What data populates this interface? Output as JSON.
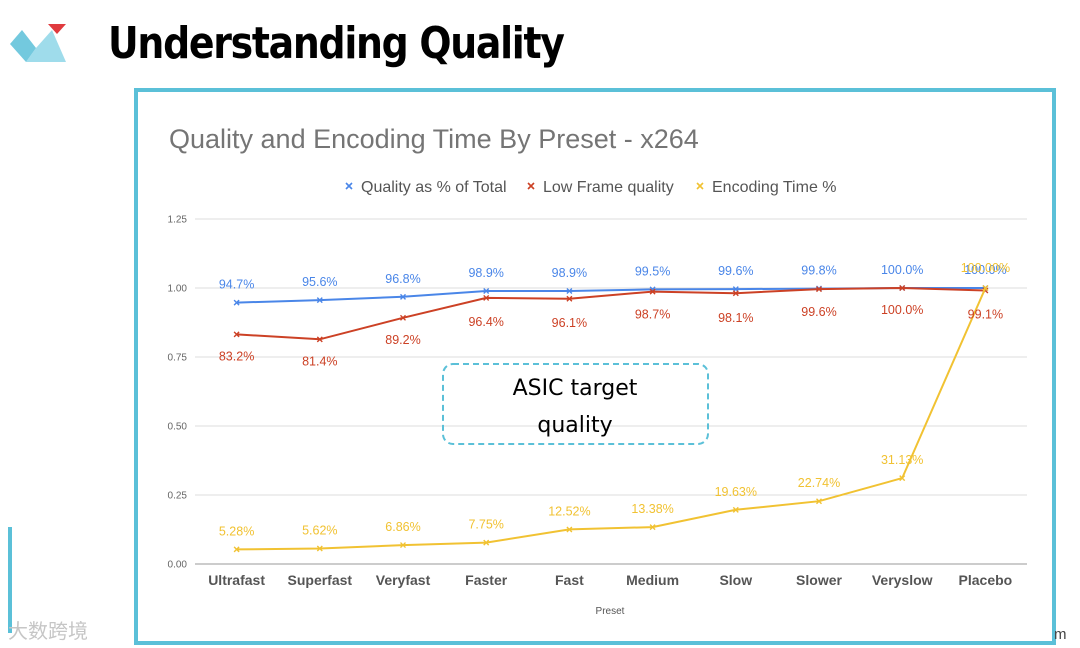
{
  "slide": {
    "title": "Understanding Quality",
    "watermark": "大数跨境",
    "corner_text": "m"
  },
  "colors": {
    "accent": "#5bc0d8",
    "logo_red": "#e03a3e",
    "logo_blue": "#5bc0d8"
  },
  "chart_data": {
    "type": "line",
    "title": "Quality and Encoding Time By Preset - x264",
    "xlabel": "Preset",
    "ylabel": "",
    "ylim": [
      0,
      1.25
    ],
    "yticks": [
      0,
      0.25,
      0.5,
      0.75,
      1.0,
      1.25
    ],
    "ytick_labels": [
      "0.00",
      "0.25",
      "0.50",
      "0.75",
      "1.00",
      "1.25"
    ],
    "grid": true,
    "legend_position": "top",
    "categories": [
      "Ultrafast",
      "Superfast",
      "Veryfast",
      "Faster",
      "Fast",
      "Medium",
      "Slow",
      "Slower",
      "Veryslow",
      "Placebo"
    ],
    "series": [
      {
        "name": "Quality as % of Total",
        "color": "#4a86e8",
        "values": [
          0.947,
          0.956,
          0.968,
          0.989,
          0.989,
          0.995,
          0.996,
          0.998,
          1.0,
          1.0
        ],
        "labels": [
          "94.7%",
          "95.6%",
          "96.8%",
          "98.9%",
          "98.9%",
          "99.5%",
          "99.6%",
          "99.8%",
          "100.0%",
          "100.0%"
        ]
      },
      {
        "name": "Low Frame quality",
        "color": "#cc4125",
        "values": [
          0.832,
          0.814,
          0.892,
          0.964,
          0.961,
          0.987,
          0.981,
          0.996,
          1.0,
          0.991
        ],
        "labels": [
          "83.2%",
          "81.4%",
          "89.2%",
          "96.4%",
          "96.1%",
          "98.7%",
          "98.1%",
          "99.6%",
          "100.0%",
          "99.1%"
        ]
      },
      {
        "name": "Encoding Time %",
        "color": "#f1c232",
        "values": [
          0.0528,
          0.0562,
          0.0686,
          0.0775,
          0.1252,
          0.1338,
          0.1963,
          0.2274,
          0.3113,
          1.0
        ],
        "labels": [
          "5.28%",
          "5.62%",
          "6.86%",
          "7.75%",
          "12.52%",
          "13.38%",
          "19.63%",
          "22.74%",
          "31.13%",
          "100.00%"
        ]
      }
    ],
    "annotation": {
      "lines": [
        "ASIC target",
        "quality"
      ]
    }
  }
}
